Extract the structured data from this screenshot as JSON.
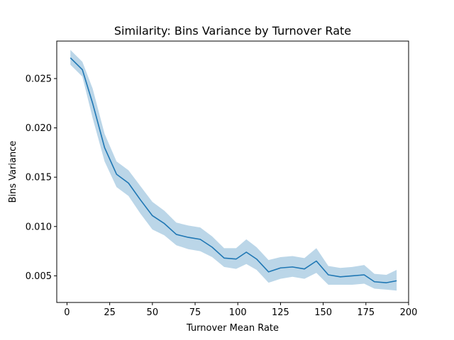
{
  "chart_data": {
    "type": "line",
    "title": "Similarity: Bins Variance by Turnover Rate",
    "xlabel": "Turnover Mean Rate",
    "ylabel": "Bins Variance",
    "xlim": [
      -6,
      200
    ],
    "ylim": [
      0.0023,
      0.0288
    ],
    "xticks": [
      0,
      25,
      50,
      75,
      100,
      125,
      150,
      175,
      200
    ],
    "xtick_labels": [
      "0",
      "25",
      "50",
      "75",
      "100",
      "125",
      "150",
      "175",
      "200"
    ],
    "yticks": [
      0.005,
      0.01,
      0.015,
      0.02,
      0.025
    ],
    "ytick_labels": [
      "0.005",
      "0.010",
      "0.015",
      "0.020",
      "0.025"
    ],
    "grid": false,
    "legend": "none",
    "series": [
      {
        "color": "#1f77b4",
        "band_color": "#1f77b4",
        "band_opacity": 0.3,
        "x": [
          2,
          9,
          15,
          22,
          29,
          36,
          43,
          50,
          57,
          64,
          71,
          78,
          85,
          92,
          99,
          105,
          111,
          118,
          125,
          132,
          139,
          146,
          153,
          160,
          167,
          174,
          180,
          187,
          193
        ],
        "y": [
          0.0271,
          0.0259,
          0.0225,
          0.018,
          0.0153,
          0.0144,
          0.0127,
          0.0111,
          0.0103,
          0.0092,
          0.0089,
          0.0087,
          0.0079,
          0.0068,
          0.0067,
          0.0074,
          0.0067,
          0.0054,
          0.0058,
          0.0059,
          0.0057,
          0.0065,
          0.0051,
          0.0049,
          0.005,
          0.0051,
          0.0044,
          0.0043,
          0.0045
        ],
        "lower": [
          0.0264,
          0.0252,
          0.021,
          0.0166,
          0.014,
          0.0131,
          0.0113,
          0.0097,
          0.0091,
          0.0081,
          0.0077,
          0.0075,
          0.0069,
          0.0059,
          0.0057,
          0.0062,
          0.0056,
          0.0043,
          0.0047,
          0.0049,
          0.0047,
          0.0053,
          0.0041,
          0.0041,
          0.0041,
          0.0042,
          0.0037,
          0.0036,
          0.0035
        ],
        "upper": [
          0.0279,
          0.0267,
          0.024,
          0.0194,
          0.0166,
          0.0157,
          0.0141,
          0.0125,
          0.0116,
          0.0104,
          0.0101,
          0.0099,
          0.009,
          0.0078,
          0.0078,
          0.0087,
          0.0079,
          0.0066,
          0.0069,
          0.007,
          0.0068,
          0.0078,
          0.006,
          0.0058,
          0.0059,
          0.0061,
          0.0052,
          0.0051,
          0.0056
        ]
      }
    ]
  }
}
